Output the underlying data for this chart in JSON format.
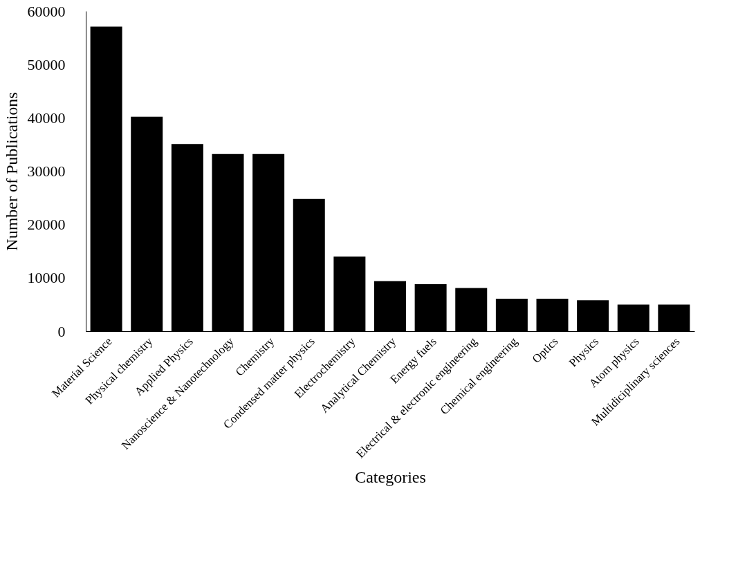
{
  "chart_data": {
    "type": "bar",
    "xlabel": "Categories",
    "ylabel": "Number of Publications",
    "categories": [
      "Material Science",
      "Physical chemistry",
      "Applied Physics",
      "Nanoscience & Nanotechnology",
      "Chemistry",
      "Condensed matter physics",
      "Electrochemistry",
      "Analytical Chemistry",
      "Energy fuels",
      "Electrical & electronic engineering",
      "Chemical engineering",
      "Optics",
      "Physics",
      "Atom physics",
      "Multidiciplinary sciences"
    ],
    "values": [
      57100,
      40200,
      35100,
      33200,
      33200,
      24800,
      14000,
      9400,
      8800,
      8100,
      6100,
      6100,
      5800,
      5000,
      5000
    ],
    "color": "#000000",
    "ylim": [
      0,
      60000
    ],
    "yticks": [
      0,
      10000,
      20000,
      30000,
      40000,
      50000,
      60000
    ],
    "grid": false
  }
}
